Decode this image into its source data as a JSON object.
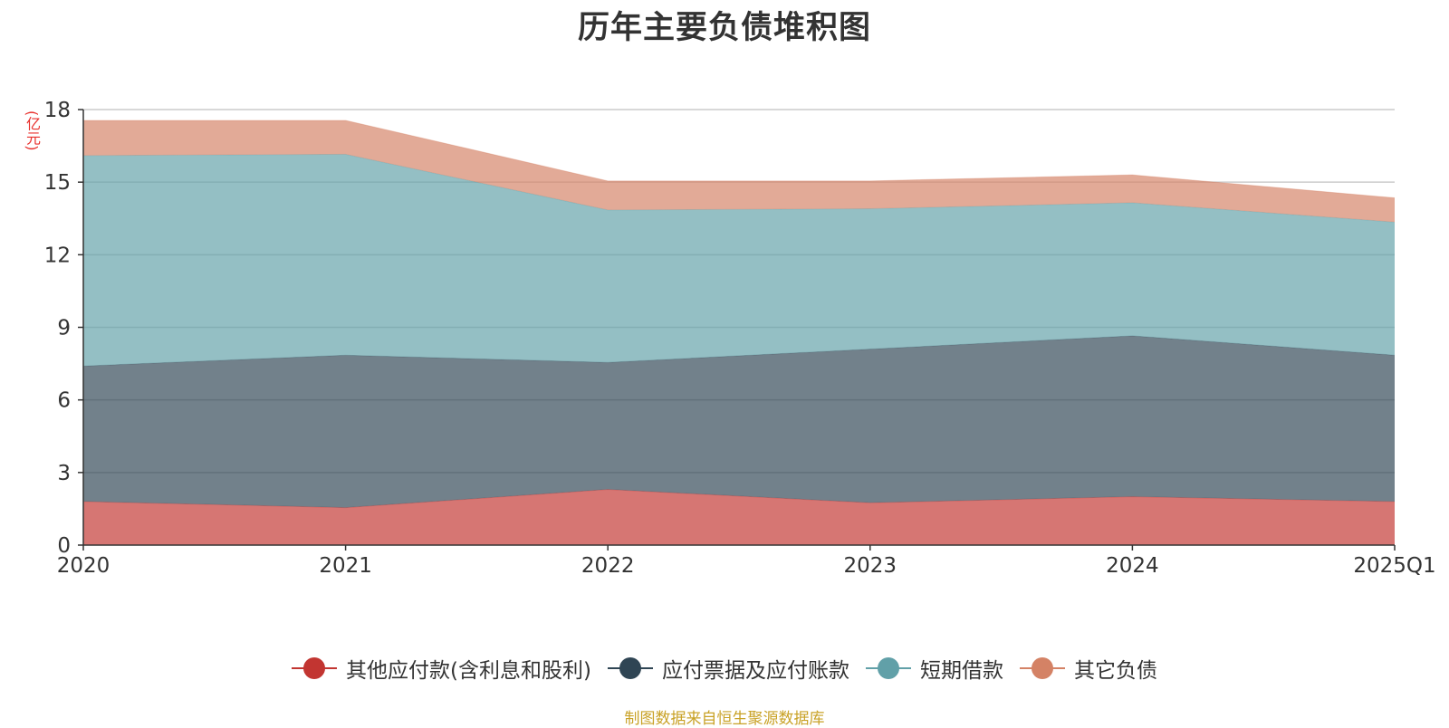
{
  "chart_data": {
    "type": "area",
    "stacked": true,
    "title": "历年主要负债堆积图",
    "unit": "(亿元)",
    "categories": [
      "2020",
      "2021",
      "2022",
      "2023",
      "2024",
      "2025Q1"
    ],
    "ylim": [
      0,
      18
    ],
    "yticks": [
      0,
      3,
      6,
      9,
      12,
      15,
      18
    ],
    "grid": true,
    "legend_position": "bottom",
    "series": [
      {
        "name": "其他应付款(含利息和股利)",
        "color": "#c23531",
        "values": [
          1.8,
          1.55,
          2.3,
          1.75,
          2.0,
          1.8
        ]
      },
      {
        "name": "应付票据及应付账款",
        "color": "#2f4554",
        "values": [
          5.6,
          6.3,
          5.25,
          6.35,
          6.65,
          6.05
        ]
      },
      {
        "name": "短期借款",
        "color": "#61a0a8",
        "values": [
          8.7,
          8.3,
          6.3,
          5.8,
          5.5,
          5.5
        ]
      },
      {
        "name": "其它负债",
        "color": "#d48265",
        "values": [
          1.45,
          1.4,
          1.2,
          1.15,
          1.15,
          1.0
        ]
      }
    ]
  },
  "source_note": "制图数据来自恒生聚源数据库"
}
